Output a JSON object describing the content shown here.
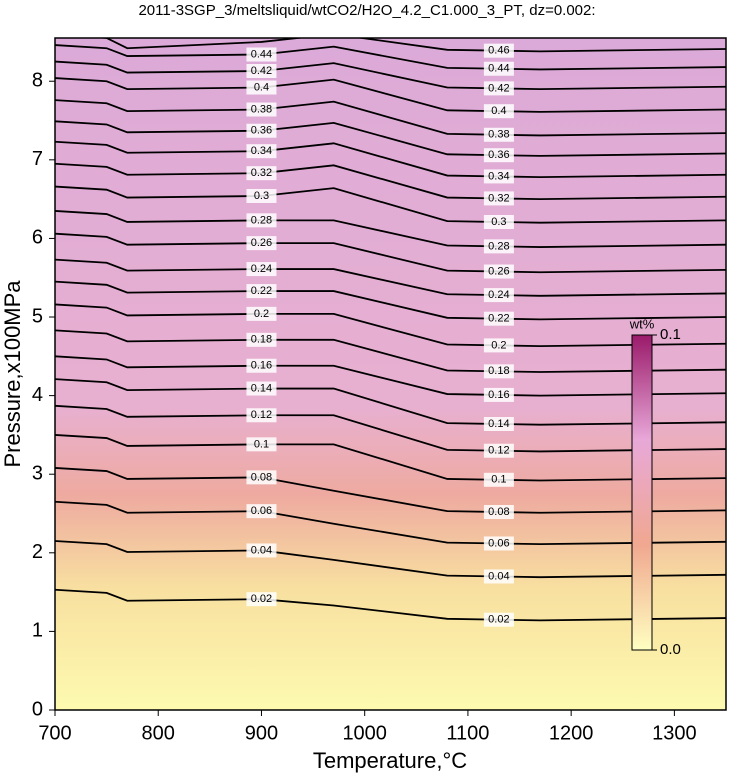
{
  "chart_data": {
    "type": "contour",
    "title": "2011-3SGP_3/meltsliquid/wtCO2/H2O_4.2_C1.000_3_PT, dz=0.002:",
    "xlabel": "Temperature,°C",
    "ylabel": "Pressure,x100MPa",
    "xlim": [
      700,
      1350
    ],
    "ylim": [
      0,
      8.55
    ],
    "xticks": [
      700,
      800,
      900,
      1000,
      1100,
      1200,
      1300
    ],
    "yticks": [
      0,
      1,
      2,
      3,
      4,
      5,
      6,
      7,
      8
    ],
    "x": [
      700,
      750,
      770,
      900,
      970,
      1080,
      1170,
      1350
    ],
    "line_color": "#000000",
    "series": [
      {
        "level": 0.02,
        "values": [
          1.53,
          1.49,
          1.39,
          1.41,
          1.33,
          1.16,
          1.14,
          1.17
        ]
      },
      {
        "level": 0.04,
        "values": [
          2.15,
          2.11,
          2.01,
          2.03,
          1.91,
          1.71,
          1.69,
          1.72
        ]
      },
      {
        "level": 0.06,
        "values": [
          2.65,
          2.61,
          2.51,
          2.53,
          2.37,
          2.13,
          2.11,
          2.14
        ]
      },
      {
        "level": 0.08,
        "values": [
          3.08,
          3.04,
          2.94,
          2.96,
          2.79,
          2.53,
          2.51,
          2.54
        ]
      },
      {
        "level": 0.1,
        "values": [
          3.5,
          3.46,
          3.36,
          3.38,
          3.38,
          2.94,
          2.92,
          2.95
        ]
      },
      {
        "level": 0.12,
        "values": [
          3.87,
          3.83,
          3.73,
          3.75,
          3.75,
          3.31,
          3.29,
          3.32
        ]
      },
      {
        "level": 0.14,
        "values": [
          4.21,
          4.17,
          4.07,
          4.09,
          4.09,
          3.65,
          3.63,
          3.66
        ]
      },
      {
        "level": 0.16,
        "values": [
          4.5,
          4.46,
          4.36,
          4.38,
          4.38,
          4.02,
          4.0,
          4.03
        ]
      },
      {
        "level": 0.18,
        "values": [
          4.83,
          4.79,
          4.69,
          4.71,
          4.71,
          4.32,
          4.3,
          4.33
        ]
      },
      {
        "level": 0.2,
        "values": [
          5.16,
          5.12,
          5.02,
          5.04,
          5.04,
          4.65,
          4.63,
          4.66
        ]
      },
      {
        "level": 0.22,
        "values": [
          5.45,
          5.41,
          5.31,
          5.33,
          5.33,
          4.99,
          4.97,
          5.0
        ]
      },
      {
        "level": 0.24,
        "values": [
          5.73,
          5.69,
          5.59,
          5.61,
          5.61,
          5.29,
          5.27,
          5.3
        ]
      },
      {
        "level": 0.26,
        "values": [
          6.06,
          6.02,
          5.92,
          5.94,
          5.94,
          5.59,
          5.57,
          5.6
        ]
      },
      {
        "level": 0.28,
        "values": [
          6.35,
          6.31,
          6.21,
          6.23,
          6.23,
          5.91,
          5.89,
          5.92
        ]
      },
      {
        "level": 0.3,
        "values": [
          6.66,
          6.62,
          6.52,
          6.54,
          6.64,
          6.22,
          6.2,
          6.23
        ]
      },
      {
        "level": 0.32,
        "values": [
          6.95,
          6.91,
          6.81,
          6.83,
          6.93,
          6.52,
          6.5,
          6.53
        ]
      },
      {
        "level": 0.34,
        "values": [
          7.23,
          7.19,
          7.09,
          7.11,
          7.21,
          6.8,
          6.78,
          6.81
        ]
      },
      {
        "level": 0.36,
        "values": [
          7.49,
          7.45,
          7.35,
          7.37,
          7.47,
          7.07,
          7.05,
          7.08
        ]
      },
      {
        "level": 0.38,
        "values": [
          7.76,
          7.72,
          7.62,
          7.64,
          7.74,
          7.33,
          7.31,
          7.34
        ]
      },
      {
        "level": 0.4,
        "values": [
          8.04,
          8.0,
          7.9,
          7.92,
          8.02,
          7.63,
          7.61,
          7.64
        ]
      },
      {
        "level": 0.42,
        "values": [
          8.25,
          8.21,
          8.11,
          8.13,
          8.23,
          7.92,
          7.9,
          7.93
        ]
      },
      {
        "level": 0.44,
        "values": [
          8.46,
          8.42,
          8.32,
          8.34,
          8.44,
          8.17,
          8.15,
          8.18
        ]
      },
      {
        "level": 0.46,
        "values": [
          8.6,
          8.55,
          8.42,
          8.5,
          8.6,
          8.4,
          8.38,
          8.41
        ]
      }
    ],
    "colorbar": {
      "title": "wt%",
      "colors": [
        "#ffffc0",
        "#f0a890",
        "#e8a8d8",
        "#9a1a6a"
      ],
      "ticks": [
        {
          "value": 0,
          "label": "0.0"
        },
        0.1
      ]
    }
  }
}
